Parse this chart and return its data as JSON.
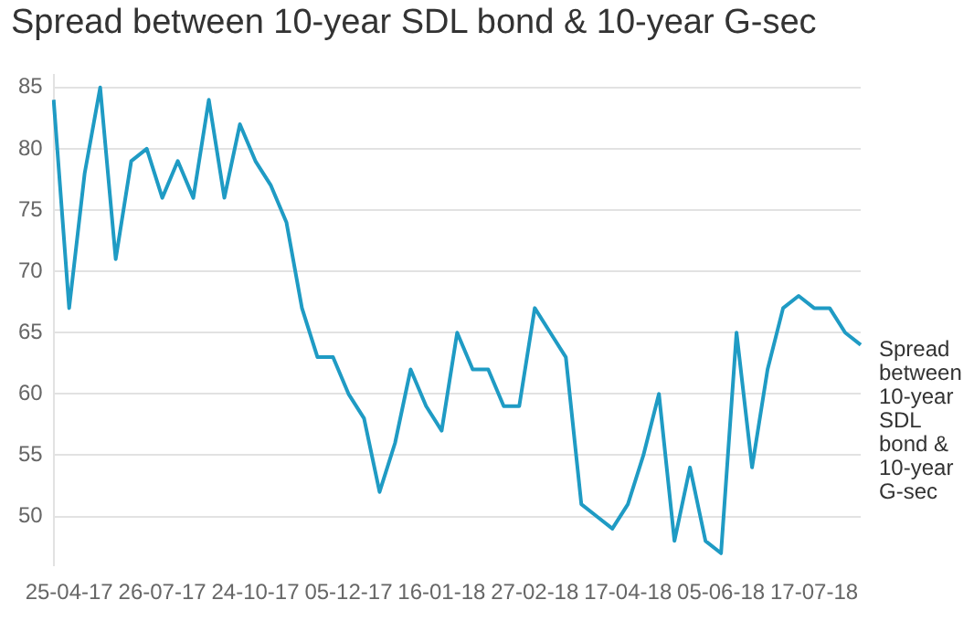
{
  "chart_data": {
    "type": "line",
    "title": "Spread between 10-year SDL bond & 10-year G-sec",
    "categories": [
      null,
      "25-04-17",
      null,
      null,
      null,
      null,
      null,
      "26-07-17",
      null,
      null,
      null,
      null,
      null,
      "24-10-17",
      null,
      null,
      null,
      null,
      null,
      "05-12-17",
      null,
      null,
      null,
      null,
      null,
      "16-01-18",
      null,
      null,
      null,
      null,
      null,
      "27-02-18",
      null,
      null,
      null,
      null,
      null,
      "17-04-18",
      null,
      null,
      null,
      null,
      null,
      "05-06-18",
      null,
      null,
      null,
      null,
      null,
      "17-07-18",
      null,
      null,
      null
    ],
    "series": [
      {
        "name": "Spread between 10-year SDL bond & 10-year G-sec",
        "color": "#1f9bc4",
        "values": [
          84,
          67,
          78,
          85,
          71,
          79,
          80,
          76,
          79,
          76,
          84,
          76,
          82,
          79,
          77,
          74,
          67,
          63,
          63,
          60,
          58,
          52,
          56,
          62,
          59,
          57,
          65,
          62,
          62,
          59,
          59,
          67,
          65,
          63,
          51,
          50,
          49,
          51,
          55,
          60,
          48,
          54,
          48,
          47,
          65,
          54,
          62,
          67,
          68,
          67,
          67,
          65,
          64
        ]
      }
    ],
    "ylim": [
      46,
      86
    ],
    "yticks": [
      50,
      55,
      60,
      65,
      70,
      75,
      80,
      85
    ],
    "grid": "y",
    "legend": false,
    "marker": "none",
    "line_style": "solid"
  }
}
